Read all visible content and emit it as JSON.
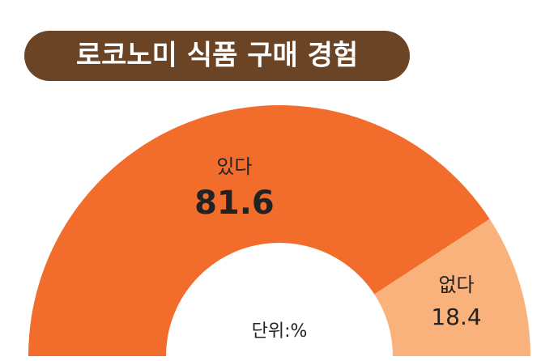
{
  "chart_data": {
    "type": "half-donut",
    "title": "로코노미 식품 구매 경험",
    "categories": [
      "있다",
      "없다"
    ],
    "values": [
      81.6,
      18.4
    ],
    "colors": [
      "#f26d2c",
      "#f9b27b"
    ],
    "unit_label": "단위:%"
  }
}
